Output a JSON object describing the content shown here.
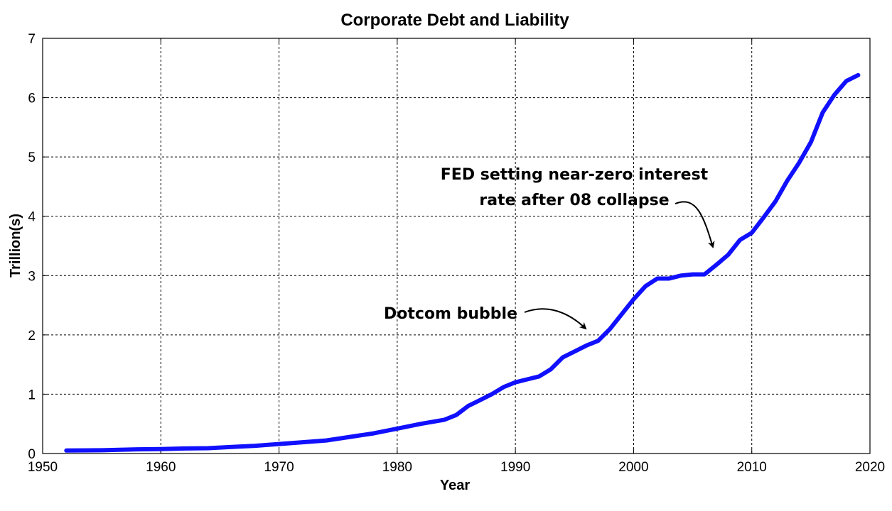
{
  "chart_data": {
    "type": "line",
    "title": "Corporate Debt and Liability",
    "xlabel": "Year",
    "ylabel": "Trillion(s)",
    "xlim": [
      1950,
      2020
    ],
    "ylim": [
      0,
      7
    ],
    "x_ticks": [
      "1950",
      "1960",
      "1970",
      "1980",
      "1990",
      "2000",
      "2010",
      "2020"
    ],
    "y_ticks": [
      "0",
      "1",
      "2",
      "3",
      "4",
      "5",
      "6",
      "7"
    ],
    "grid": true,
    "line_color": "#1010ff",
    "series": [
      {
        "points": [
          [
            1952,
            0.05
          ],
          [
            1955,
            0.055
          ],
          [
            1958,
            0.07
          ],
          [
            1960,
            0.075
          ],
          [
            1962,
            0.085
          ],
          [
            1964,
            0.09
          ],
          [
            1966,
            0.11
          ],
          [
            1968,
            0.13
          ],
          [
            1970,
            0.16
          ],
          [
            1972,
            0.19
          ],
          [
            1974,
            0.22
          ],
          [
            1976,
            0.28
          ],
          [
            1978,
            0.34
          ],
          [
            1980,
            0.42
          ],
          [
            1982,
            0.5
          ],
          [
            1984,
            0.57
          ],
          [
            1985,
            0.65
          ],
          [
            1986,
            0.8
          ],
          [
            1987,
            0.9
          ],
          [
            1988,
            1.0
          ],
          [
            1989,
            1.12
          ],
          [
            1990,
            1.2
          ],
          [
            1991,
            1.25
          ],
          [
            1992,
            1.3
          ],
          [
            1993,
            1.42
          ],
          [
            1994,
            1.62
          ],
          [
            1995,
            1.72
          ],
          [
            1996,
            1.82
          ],
          [
            1997,
            1.9
          ],
          [
            1998,
            2.1
          ],
          [
            1999,
            2.35
          ],
          [
            2000,
            2.6
          ],
          [
            2001,
            2.82
          ],
          [
            2002,
            2.95
          ],
          [
            2003,
            2.95
          ],
          [
            2004,
            3.0
          ],
          [
            2005,
            3.02
          ],
          [
            2006,
            3.02
          ],
          [
            2007,
            3.18
          ],
          [
            2008,
            3.35
          ],
          [
            2009,
            3.6
          ],
          [
            2010,
            3.72
          ],
          [
            2011,
            3.98
          ],
          [
            2012,
            4.25
          ],
          [
            2013,
            4.6
          ],
          [
            2014,
            4.9
          ],
          [
            2015,
            5.25
          ],
          [
            2016,
            5.75
          ],
          [
            2017,
            6.05
          ],
          [
            2018,
            6.28
          ],
          [
            2019,
            6.38
          ]
        ]
      }
    ],
    "annotations": [
      {
        "text": "Dotcom bubble",
        "points_to": [
          1996.5,
          2.05
        ]
      },
      {
        "text": "FED setting near-zero interest",
        "points_to": [
          2007,
          3.3
        ]
      },
      {
        "text": "rate after 08 collapse",
        "points_to": [
          2007,
          3.3
        ]
      }
    ]
  }
}
